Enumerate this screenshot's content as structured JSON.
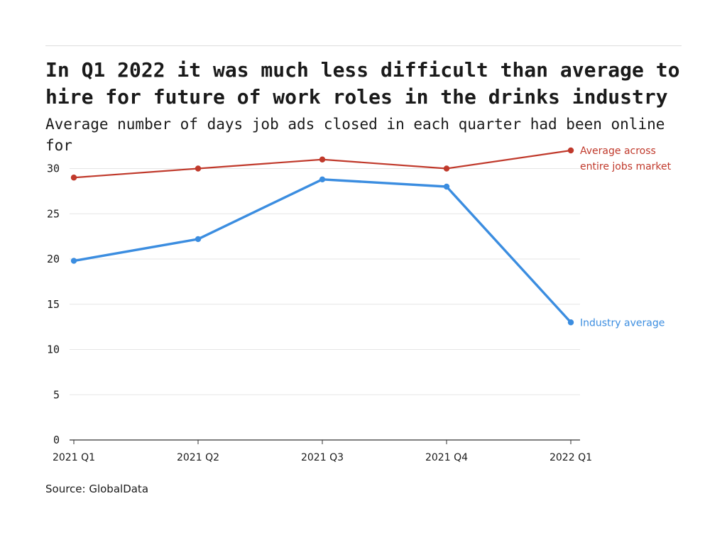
{
  "title": "In Q1 2022 it was much less difficult than average to hire for future of work roles in the drinks industry",
  "subtitle": "Average number of days job ads closed in each quarter had been online for",
  "source": "Source: GlobalData",
  "colors": {
    "market": "#c0392b",
    "industry": "#3b8de0",
    "grid": "#e6e6e6",
    "axis": "#333333"
  },
  "chart_data": {
    "type": "line",
    "categories": [
      "2021 Q1",
      "2021 Q2",
      "2021 Q3",
      "2021 Q4",
      "2022 Q1"
    ],
    "ylim": [
      0,
      32
    ],
    "yticks": [
      0,
      5,
      10,
      15,
      20,
      25,
      30
    ],
    "grid": true,
    "series": [
      {
        "name": "Average across entire jobs market",
        "label_lines": [
          "Average across",
          "entire jobs market"
        ],
        "color": "#c0392b",
        "values": [
          29,
          30,
          31,
          30,
          32
        ]
      },
      {
        "name": "Industry average",
        "label_lines": [
          "Industry average"
        ],
        "color": "#3b8de0",
        "values": [
          19.8,
          22.2,
          28.8,
          28,
          13
        ]
      }
    ]
  }
}
